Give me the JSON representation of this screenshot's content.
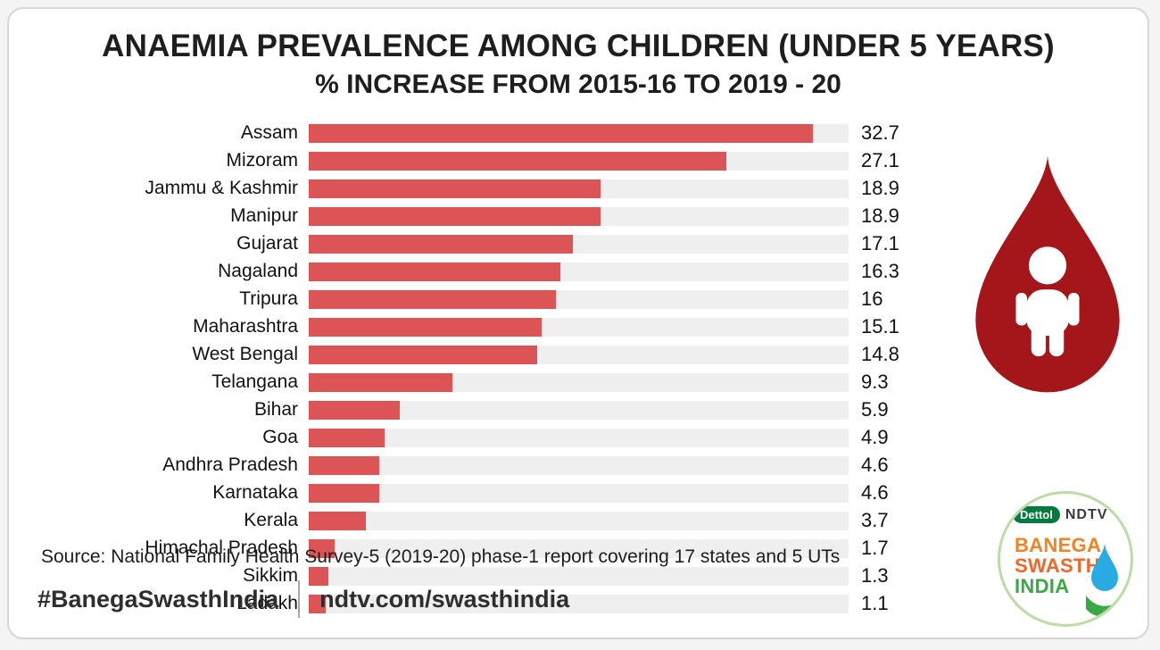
{
  "chart_data": {
    "type": "bar",
    "orientation": "horizontal",
    "title": "ANAEMIA PREVALENCE AMONG CHILDREN (UNDER 5 YEARS)",
    "subtitle": "% INCREASE FROM 2015-16 TO 2019 - 20",
    "categories": [
      "Assam",
      "Mizoram",
      "Jammu & Kashmir",
      "Manipur",
      "Gujarat",
      "Nagaland",
      "Tripura",
      "Maharashtra",
      "West Bengal",
      "Telangana",
      "Bihar",
      "Goa",
      "Andhra Pradesh",
      "Karnataka",
      "Kerala",
      "Himachal Pradesh",
      "Sikkim",
      "Ladakh"
    ],
    "values": [
      32.7,
      27.1,
      18.9,
      18.9,
      17.1,
      16.3,
      16,
      15.1,
      14.8,
      9.3,
      5.9,
      4.9,
      4.6,
      4.6,
      3.7,
      1.7,
      1.3,
      1.1
    ],
    "xlim": [
      0,
      35
    ],
    "value_labels_shown": true,
    "grid": false,
    "legend": false
  },
  "source": "Source: National Family Health Survey-5 (2019-20) phase-1 report covering 17 states and 5 UTs",
  "footer": {
    "hashtag": "#BanegaSwasthIndia",
    "url": "ndtv.com/swasthindia"
  },
  "logo": {
    "dettol": "Dettol",
    "ndtv": "NDTV",
    "line1": "BANEGA",
    "line2": "SWASTH",
    "line3": "INDIA"
  },
  "icons": {
    "blood_drop": "blood-drop-icon",
    "child": "child-icon",
    "water_drop": "water-drop-icon",
    "hand": "hand-icon"
  },
  "colors": {
    "bar": "#dc5456",
    "track": "#efefef",
    "drop": "#a5161a",
    "accent_orange": "#f58220",
    "accent_orange2": "#f26522",
    "accent_green": "#39a845",
    "dettol_green": "#007a3d",
    "logo_blue": "#29abe2",
    "text_dark": "#1e1e1e"
  }
}
